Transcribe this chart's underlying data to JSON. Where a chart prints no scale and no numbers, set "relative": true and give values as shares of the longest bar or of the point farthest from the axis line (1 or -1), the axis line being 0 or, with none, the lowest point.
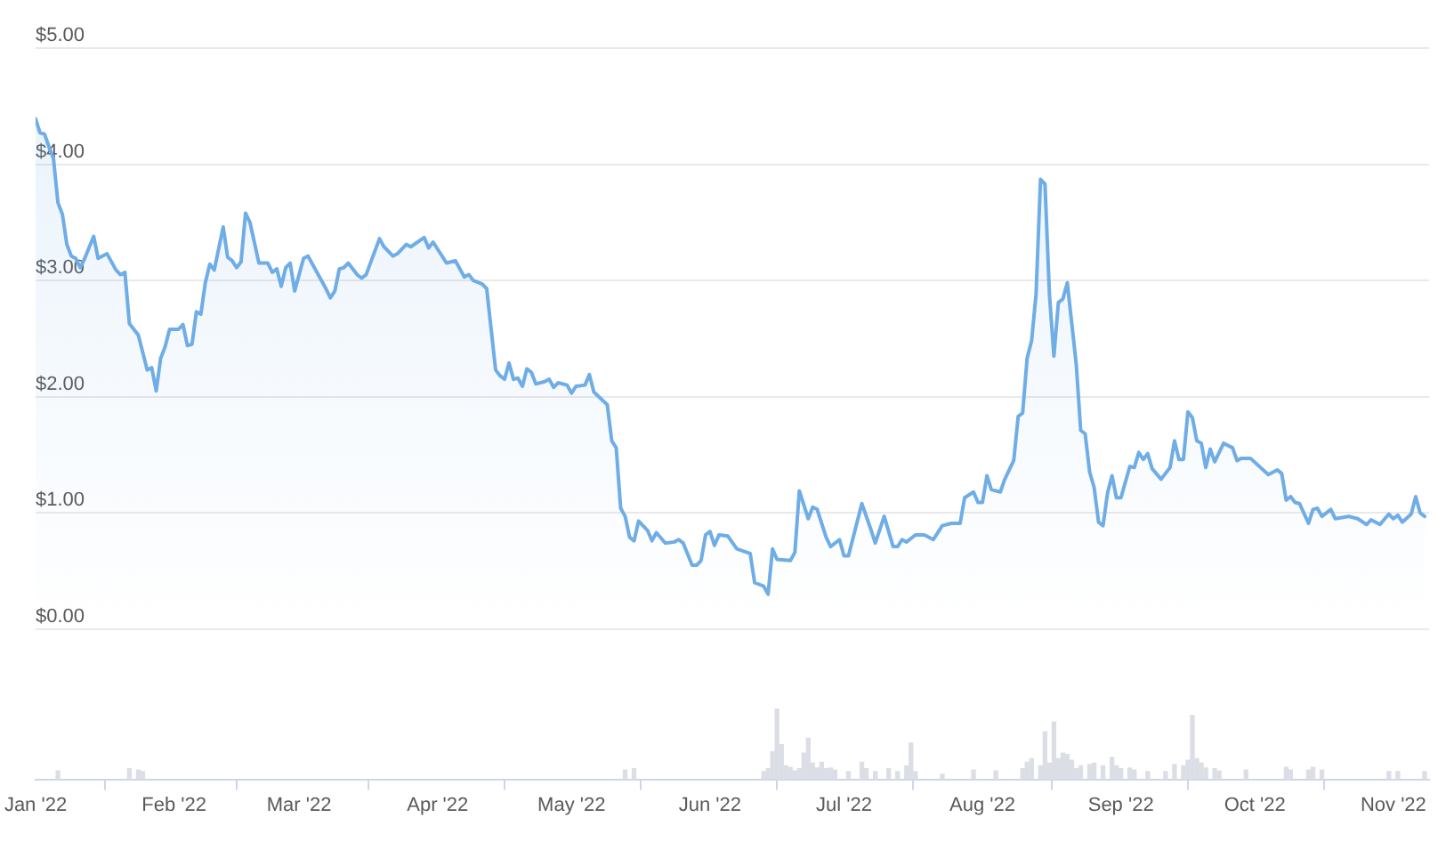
{
  "chart_data": [
    {
      "type": "area",
      "color": "#6fade6",
      "x": [
        "2022-01-01",
        "2022-01-02",
        "2022-01-03",
        "2022-01-04",
        "2022-01-05",
        "2022-01-06",
        "2022-01-07",
        "2022-01-08",
        "2022-01-09",
        "2022-01-10",
        "2022-01-11",
        "2022-01-12",
        "2022-01-14",
        "2022-01-15",
        "2022-01-17",
        "2022-01-19",
        "2022-01-20",
        "2022-01-21",
        "2022-01-22",
        "2022-01-24",
        "2022-01-26",
        "2022-01-27",
        "2022-01-28",
        "2022-01-29",
        "2022-01-30",
        "2022-01-31",
        "2022-02-02",
        "2022-02-03",
        "2022-02-04",
        "2022-02-05",
        "2022-02-06",
        "2022-02-07",
        "2022-02-08",
        "2022-02-09",
        "2022-02-10",
        "2022-02-12",
        "2022-02-13",
        "2022-02-14",
        "2022-02-15",
        "2022-02-16",
        "2022-02-17",
        "2022-02-18",
        "2022-02-20",
        "2022-02-22",
        "2022-02-23",
        "2022-02-24",
        "2022-02-25",
        "2022-02-26",
        "2022-02-27",
        "2022-02-28",
        "2022-03-02",
        "2022-03-03",
        "2022-03-05",
        "2022-03-07",
        "2022-03-08",
        "2022-03-09",
        "2022-03-10",
        "2022-03-11",
        "2022-03-12",
        "2022-03-14",
        "2022-03-15",
        "2022-03-16",
        "2022-03-19",
        "2022-03-20",
        "2022-03-22",
        "2022-03-23",
        "2022-03-25",
        "2022-03-26",
        "2022-03-29",
        "2022-03-30",
        "2022-03-31",
        "2022-04-03",
        "2022-04-05",
        "2022-04-07",
        "2022-04-08",
        "2022-04-09",
        "2022-04-11",
        "2022-04-12",
        "2022-04-13",
        "2022-04-14",
        "2022-04-15",
        "2022-04-16",
        "2022-04-17",
        "2022-04-18",
        "2022-04-19",
        "2022-04-20",
        "2022-04-21",
        "2022-04-22",
        "2022-04-23",
        "2022-04-25",
        "2022-04-26",
        "2022-04-27",
        "2022-04-28",
        "2022-04-30",
        "2022-05-01",
        "2022-05-02",
        "2022-05-04",
        "2022-05-05",
        "2022-05-06",
        "2022-05-09",
        "2022-05-10",
        "2022-05-11",
        "2022-05-12",
        "2022-05-13",
        "2022-05-14",
        "2022-05-15",
        "2022-05-16",
        "2022-05-18",
        "2022-05-19",
        "2022-05-20",
        "2022-05-22",
        "2022-05-24",
        "2022-05-25",
        "2022-05-26",
        "2022-05-28",
        "2022-05-29",
        "2022-05-30",
        "2022-05-31",
        "2022-06-01",
        "2022-06-02",
        "2022-06-03",
        "2022-06-05",
        "2022-06-07",
        "2022-06-10",
        "2022-06-11",
        "2022-06-13",
        "2022-06-14",
        "2022-06-15",
        "2022-06-16",
        "2022-06-19",
        "2022-06-20",
        "2022-06-21",
        "2022-06-23",
        "2022-06-24",
        "2022-06-25",
        "2022-06-27",
        "2022-06-28",
        "2022-06-30",
        "2022-07-01",
        "2022-07-02",
        "2022-07-05",
        "2022-07-07",
        "2022-07-08",
        "2022-07-10",
        "2022-07-12",
        "2022-07-13",
        "2022-07-14",
        "2022-07-15",
        "2022-07-17",
        "2022-07-19",
        "2022-07-21",
        "2022-07-23",
        "2022-07-25",
        "2022-07-27",
        "2022-07-28",
        "2022-07-30",
        "2022-07-31",
        "2022-08-01",
        "2022-08-02",
        "2022-08-03",
        "2022-08-05",
        "2022-08-06",
        "2022-08-08",
        "2022-08-09",
        "2022-08-10",
        "2022-08-11",
        "2022-08-12",
        "2022-08-13",
        "2022-08-14",
        "2022-08-15",
        "2022-08-16",
        "2022-08-17",
        "2022-08-18",
        "2022-08-19",
        "2022-08-20",
        "2022-08-22",
        "2022-08-23",
        "2022-08-24",
        "2022-08-25",
        "2022-08-26",
        "2022-08-27",
        "2022-08-28",
        "2022-08-29",
        "2022-08-30",
        "2022-08-31",
        "2022-09-01",
        "2022-09-03",
        "2022-09-04",
        "2022-09-05",
        "2022-09-06",
        "2022-09-07",
        "2022-09-08",
        "2022-09-10",
        "2022-09-12",
        "2022-09-13",
        "2022-09-14",
        "2022-09-15",
        "2022-09-16",
        "2022-09-17",
        "2022-09-18",
        "2022-09-19",
        "2022-09-20",
        "2022-09-21",
        "2022-09-22",
        "2022-09-24",
        "2022-09-26",
        "2022-09-27",
        "2022-09-28",
        "2022-09-30",
        "2022-10-04",
        "2022-10-06",
        "2022-10-07",
        "2022-10-08",
        "2022-10-09",
        "2022-10-10",
        "2022-10-11",
        "2022-10-13",
        "2022-10-14",
        "2022-10-15",
        "2022-10-16",
        "2022-10-18",
        "2022-10-19",
        "2022-10-22",
        "2022-10-24",
        "2022-10-26",
        "2022-10-27",
        "2022-10-29",
        "2022-10-31",
        "2022-11-01",
        "2022-11-02",
        "2022-11-03",
        "2022-11-05",
        "2022-11-06",
        "2022-11-07",
        "2022-11-08"
      ],
      "values": [
        4.39,
        4.27,
        4.26,
        4.15,
        4.05,
        3.67,
        3.57,
        3.31,
        3.21,
        3.19,
        3.11,
        3.19,
        3.38,
        3.19,
        3.23,
        3.09,
        3.05,
        3.07,
        2.63,
        2.53,
        2.23,
        2.25,
        2.05,
        2.33,
        2.43,
        2.58,
        2.58,
        2.62,
        2.44,
        2.45,
        2.73,
        2.71,
        2.98,
        3.14,
        3.09,
        3.46,
        3.2,
        3.17,
        3.11,
        3.16,
        3.58,
        3.5,
        3.15,
        3.15,
        3.07,
        3.1,
        2.95,
        3.11,
        3.15,
        2.91,
        3.19,
        3.21,
        3.07,
        2.93,
        2.85,
        2.91,
        3.1,
        3.11,
        3.15,
        3.05,
        3.02,
        3.05,
        3.36,
        3.29,
        3.21,
        3.23,
        3.31,
        3.29,
        3.37,
        3.28,
        3.33,
        3.15,
        3.17,
        3.03,
        3.05,
        3.0,
        2.97,
        2.93,
        2.58,
        2.23,
        2.18,
        2.15,
        2.29,
        2.15,
        2.16,
        2.09,
        2.24,
        2.21,
        2.11,
        2.13,
        2.15,
        2.08,
        2.12,
        2.1,
        2.03,
        2.09,
        2.1,
        2.19,
        2.04,
        1.93,
        1.62,
        1.56,
        1.04,
        0.97,
        0.79,
        0.76,
        0.93,
        0.85,
        0.76,
        0.83,
        0.74,
        0.75,
        0.77,
        0.74,
        0.55,
        0.55,
        0.59,
        0.81,
        0.84,
        0.72,
        0.81,
        0.8,
        0.69,
        0.65,
        0.4,
        0.37,
        0.3,
        0.69,
        0.6,
        0.59,
        0.66,
        1.19,
        0.95,
        1.05,
        1.03,
        0.79,
        0.71,
        0.77,
        0.63,
        0.63,
        1.08,
        0.86,
        0.74,
        0.97,
        0.71,
        0.71,
        0.77,
        0.75,
        0.81,
        0.81,
        0.77,
        0.89,
        0.91,
        0.91,
        1.13,
        1.18,
        1.09,
        1.09,
        1.32,
        1.2,
        1.18,
        1.29,
        1.45,
        1.83,
        1.86,
        2.33,
        2.48,
        2.88,
        3.87,
        3.83,
        2.88,
        2.35,
        2.81,
        2.84,
        2.98,
        2.28,
        1.71,
        1.68,
        1.35,
        1.22,
        0.92,
        0.89,
        1.17,
        1.32,
        1.13,
        1.13,
        1.4,
        1.39,
        1.52,
        1.46,
        1.51,
        1.38,
        1.29,
        1.39,
        1.62,
        1.46,
        1.46,
        1.87,
        1.82,
        1.62,
        1.6,
        1.39,
        1.55,
        1.44,
        1.6,
        1.56,
        1.45,
        1.47,
        1.47,
        1.33,
        1.37,
        1.34,
        1.11,
        1.14,
        1.09,
        1.08,
        0.91,
        1.03,
        1.04,
        0.97,
        1.03,
        0.95,
        0.97,
        0.95,
        0.9,
        0.94,
        0.9,
        0.99,
        0.95,
        0.98,
        0.92,
        0.99,
        1.14,
        1.0,
        0.97
      ],
      "xlim": [
        "2022-01-01",
        "2022-11-09"
      ],
      "ylim": [
        0,
        5
      ],
      "yticks": [
        {
          "value": 0,
          "label": "$0.00"
        },
        {
          "value": 1,
          "label": "$1.00"
        },
        {
          "value": 2,
          "label": "$2.00"
        },
        {
          "value": 3,
          "label": "$3.00"
        },
        {
          "value": 4,
          "label": "$4.00"
        },
        {
          "value": 5,
          "label": "$5.00"
        }
      ],
      "grid": "y",
      "tick_labels": "y"
    },
    {
      "type": "bar",
      "color": "#dcdee6",
      "relative": true,
      "x": [
        "2022-01-06",
        "2022-01-22",
        "2022-01-24",
        "2022-01-25",
        "2022-05-13",
        "2022-05-15",
        "2022-06-13",
        "2022-06-14",
        "2022-06-15",
        "2022-06-16",
        "2022-06-17",
        "2022-06-18",
        "2022-06-19",
        "2022-06-20",
        "2022-06-21",
        "2022-06-22",
        "2022-06-23",
        "2022-06-24",
        "2022-06-25",
        "2022-06-26",
        "2022-06-27",
        "2022-06-28",
        "2022-06-29",
        "2022-07-02",
        "2022-07-05",
        "2022-07-06",
        "2022-07-08",
        "2022-07-11",
        "2022-07-13",
        "2022-07-15",
        "2022-07-16",
        "2022-07-17",
        "2022-07-23",
        "2022-07-30",
        "2022-08-04",
        "2022-08-10",
        "2022-08-11",
        "2022-08-12",
        "2022-08-14",
        "2022-08-15",
        "2022-08-16",
        "2022-08-17",
        "2022-08-18",
        "2022-08-19",
        "2022-08-20",
        "2022-08-21",
        "2022-08-22",
        "2022-08-23",
        "2022-08-25",
        "2022-08-26",
        "2022-08-28",
        "2022-08-30",
        "2022-08-31",
        "2022-09-01",
        "2022-09-03",
        "2022-09-04",
        "2022-09-07",
        "2022-09-11",
        "2022-09-13",
        "2022-09-15",
        "2022-09-16",
        "2022-09-17",
        "2022-09-18",
        "2022-09-19",
        "2022-09-20",
        "2022-09-22",
        "2022-09-23",
        "2022-09-29",
        "2022-10-08",
        "2022-10-09",
        "2022-10-13",
        "2022-10-14",
        "2022-10-16",
        "2022-10-31",
        "2022-11-02",
        "2022-11-08"
      ],
      "values": [
        0.12,
        0.15,
        0.13,
        0.11,
        0.13,
        0.15,
        0.11,
        0.15,
        0.39,
        1,
        0.49,
        0.19,
        0.17,
        0.12,
        0.15,
        0.37,
        0.58,
        0.23,
        0.16,
        0.24,
        0.15,
        0.16,
        0.13,
        0.11,
        0.24,
        0.15,
        0.11,
        0.15,
        0.11,
        0.19,
        0.51,
        0.11,
        0.07,
        0.13,
        0.12,
        0.15,
        0.24,
        0.29,
        0.19,
        0.67,
        0.23,
        0.81,
        0.29,
        0.37,
        0.35,
        0.27,
        0.15,
        0.19,
        0.21,
        0.23,
        0.19,
        0.31,
        0.19,
        0.15,
        0.16,
        0.13,
        0.11,
        0.11,
        0.21,
        0.19,
        0.27,
        0.9,
        0.29,
        0.23,
        0.16,
        0.15,
        0.12,
        0.13,
        0.17,
        0.13,
        0.13,
        0.17,
        0.13,
        0.11,
        0.11,
        0.11
      ],
      "xlim": [
        "2022-01-01",
        "2022-11-09"
      ],
      "xticks": [
        {
          "value": "2022-01-01",
          "label": "Jan '22"
        },
        {
          "value": "2022-02-01",
          "label": "Feb '22"
        },
        {
          "value": "2022-03-01",
          "label": "Mar '22"
        },
        {
          "value": "2022-04-01",
          "label": "Apr '22"
        },
        {
          "value": "2022-05-01",
          "label": "May '22"
        },
        {
          "value": "2022-06-01",
          "label": "Jun '22"
        },
        {
          "value": "2022-07-01",
          "label": "Jul '22"
        },
        {
          "value": "2022-08-01",
          "label": "Aug '22"
        },
        {
          "value": "2022-09-01",
          "label": "Sep '22"
        },
        {
          "value": "2022-10-01",
          "label": "Oct '22"
        },
        {
          "value": "2022-11-01",
          "label": "Nov '22"
        }
      ],
      "tick_labels": "x"
    }
  ]
}
